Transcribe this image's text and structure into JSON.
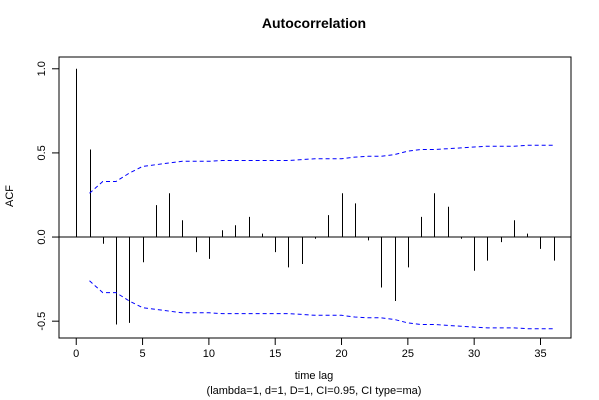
{
  "chart_data": {
    "type": "bar",
    "title": "Autocorrelation",
    "xlabel": "time lag",
    "subtitle": "(lambda=1, d=1, D=1, CI=0.95, CI type=ma)",
    "ylabel": "ACF",
    "xlim": [
      -1.3,
      37.3
    ],
    "ylim": [
      -0.6,
      1.07
    ],
    "x_ticks": [
      0,
      5,
      10,
      15,
      20,
      25,
      30,
      35
    ],
    "y_ticks": [
      -0.5,
      0.0,
      0.5,
      1.0
    ],
    "y_tick_labels": [
      "-0.5",
      "0.0",
      "0.5",
      "1.0"
    ],
    "lags": [
      0,
      1,
      2,
      3,
      4,
      5,
      6,
      7,
      8,
      9,
      10,
      11,
      12,
      13,
      14,
      15,
      16,
      17,
      18,
      19,
      20,
      21,
      22,
      23,
      24,
      25,
      26,
      27,
      28,
      29,
      30,
      31,
      32,
      33,
      34,
      35,
      36
    ],
    "acf": [
      1.0,
      0.52,
      -0.04,
      -0.52,
      -0.51,
      -0.15,
      0.19,
      0.26,
      0.1,
      -0.09,
      -0.13,
      0.04,
      0.07,
      0.12,
      0.02,
      -0.09,
      -0.18,
      -0.16,
      -0.01,
      0.13,
      0.26,
      0.2,
      -0.02,
      -0.3,
      -0.38,
      -0.18,
      0.12,
      0.26,
      0.18,
      -0.01,
      -0.2,
      -0.14,
      -0.03,
      0.1,
      0.02,
      -0.07,
      -0.14
    ],
    "ci_upper": [
      null,
      0.26,
      0.33,
      0.33,
      0.38,
      0.42,
      0.43,
      0.44,
      0.45,
      0.45,
      0.45,
      0.455,
      0.455,
      0.455,
      0.455,
      0.455,
      0.455,
      0.46,
      0.465,
      0.465,
      0.465,
      0.475,
      0.48,
      0.48,
      0.49,
      0.51,
      0.52,
      0.52,
      0.525,
      0.53,
      0.535,
      0.54,
      0.54,
      0.54,
      0.545,
      0.545,
      0.545
    ],
    "ci_color": "#0000ff",
    "bar_color": "#000000"
  }
}
